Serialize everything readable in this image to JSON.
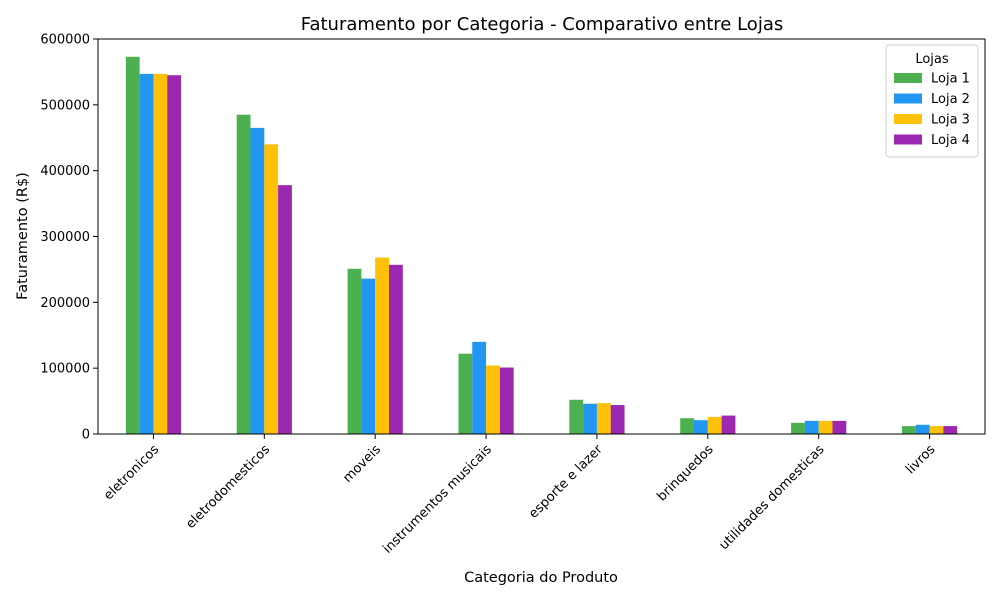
{
  "chart_data": {
    "type": "bar",
    "title": "Faturamento por Categoria - Comparativo entre Lojas",
    "xlabel": "Categoria do Produto",
    "ylabel": "Faturamento (R$)",
    "ylim": [
      0,
      600000
    ],
    "yticks": [
      0,
      100000,
      200000,
      300000,
      400000,
      500000,
      600000
    ],
    "grid": false,
    "legend": {
      "title": "Lojas",
      "placement": "top-right"
    },
    "categories": [
      "eletronicos",
      "eletrodomesticos",
      "moveis",
      "instrumentos musicais",
      "esporte e lazer",
      "brinquedos",
      "utilidades domesticas",
      "livros"
    ],
    "series": [
      {
        "name": "Loja 1",
        "color": "#4caf50",
        "values": [
          573000,
          485000,
          251000,
          122000,
          52000,
          24000,
          17000,
          12000
        ]
      },
      {
        "name": "Loja 2",
        "color": "#2196f3",
        "values": [
          547000,
          465000,
          236000,
          140000,
          46000,
          21000,
          20000,
          14000
        ]
      },
      {
        "name": "Loja 3",
        "color": "#ffc107",
        "values": [
          547000,
          440000,
          268000,
          104000,
          47000,
          26000,
          20000,
          12000
        ]
      },
      {
        "name": "Loja 4",
        "color": "#9c27b0",
        "values": [
          545000,
          378000,
          257000,
          101000,
          44000,
          28000,
          20000,
          12000
        ]
      }
    ]
  }
}
